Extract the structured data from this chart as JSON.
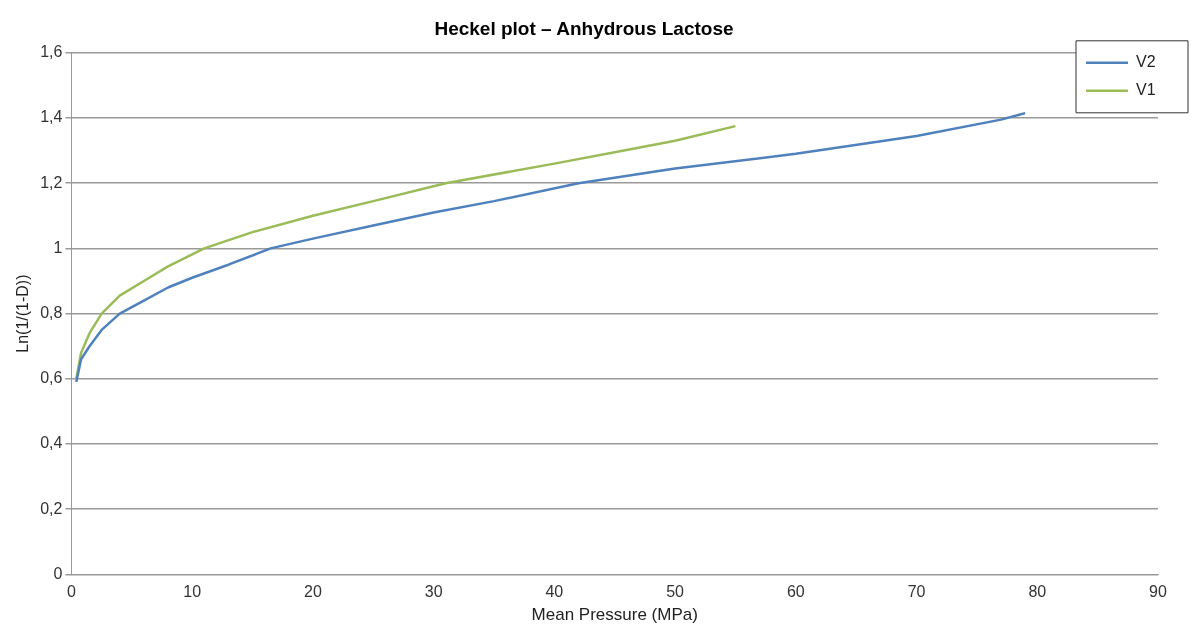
{
  "chart_data": {
    "type": "line",
    "title": "Heckel plot – Anhydrous Lactose",
    "xlabel": "Mean Pressure (MPa)",
    "ylabel": "Ln(1/(1-D))",
    "xlim": [
      0,
      90
    ],
    "xticks": [
      0,
      10,
      20,
      30,
      40,
      50,
      60,
      70,
      80,
      90
    ],
    "ylim": [
      0,
      1.6
    ],
    "yticks": [
      0,
      {
        "value": 0.2,
        "label": "0,2"
      },
      {
        "value": 0.4,
        "label": "0,4"
      },
      {
        "value": 0.6,
        "label": "0,6"
      },
      {
        "value": 0.8,
        "label": "0,8"
      },
      1,
      {
        "value": 1.2,
        "label": "1,2"
      },
      {
        "value": 1.4,
        "label": "1,4"
      },
      {
        "value": 1.6,
        "label": "1,6"
      }
    ],
    "grid": "y",
    "legend": "top right",
    "marker": "none",
    "line_style": "solid",
    "series": [
      {
        "name": "V2",
        "color": "#4f81bd",
        "x": [
          0.4,
          0.8,
          1.5,
          2.5,
          4,
          6,
          8,
          10,
          13,
          16.5,
          20,
          25,
          30,
          35,
          42,
          50,
          60,
          70,
          77,
          79
        ],
        "values": [
          0.59,
          0.66,
          0.7,
          0.75,
          0.8,
          0.84,
          0.88,
          0.91,
          0.95,
          1.0,
          1.03,
          1.07,
          1.11,
          1.145,
          1.2,
          1.245,
          1.29,
          1.345,
          1.395,
          1.415
        ]
      },
      {
        "name": "V1",
        "color": "#9bbb59",
        "x": [
          0.4,
          0.8,
          1.5,
          2.5,
          4,
          6,
          8,
          11,
          15,
          20,
          25,
          31,
          40,
          45,
          50,
          55
        ],
        "values": [
          0.6,
          0.68,
          0.74,
          0.8,
          0.855,
          0.9,
          0.945,
          1.0,
          1.05,
          1.1,
          1.145,
          1.2,
          1.26,
          1.295,
          1.33,
          1.375
        ]
      }
    ]
  }
}
